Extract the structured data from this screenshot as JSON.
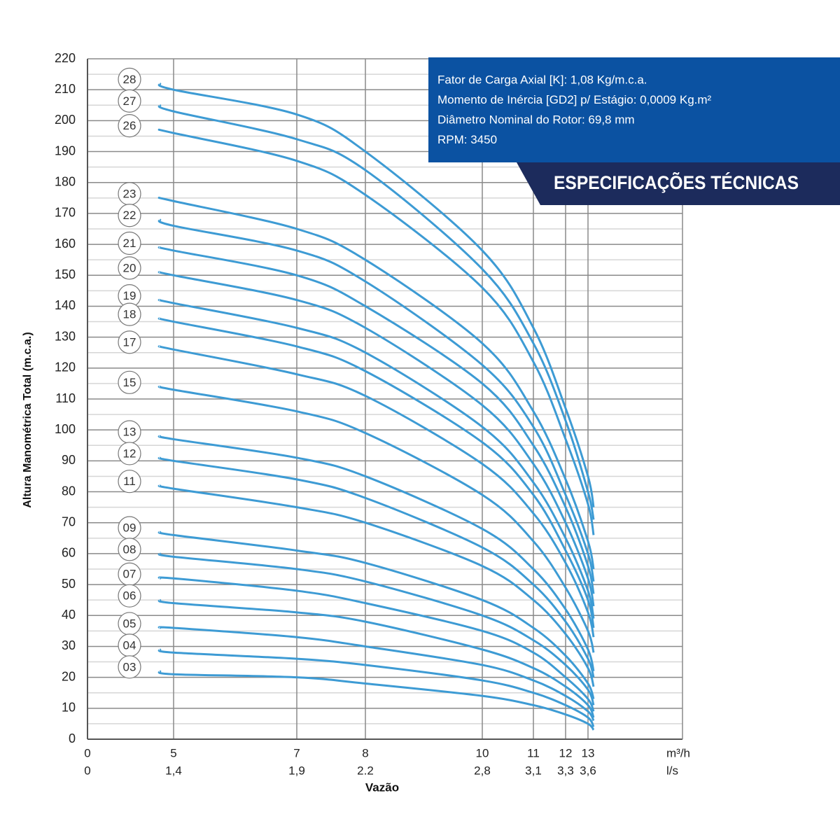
{
  "chart_data": {
    "type": "line",
    "ylabel": "Altura Manométrica Total (m.c.a.)",
    "xlabel": "Vazão",
    "x_unit": "m³/h",
    "x2_unit": "l/s",
    "annotations": [
      "Fator de Carga Axial [K]: 1,08 Kg/m.c.a.",
      "Momento de Inércia [GD2] p/ Estágio: 0,0009 Kg.m²",
      "Diâmetro Nominal do Rotor: 69,8 mm",
      "RPM: 3450"
    ],
    "banner": "ESPECIFICAÇÕES TÉCNICAS",
    "color": "#3d9bd4",
    "grid": true,
    "ylim": [
      0,
      220
    ],
    "yticks": [
      0,
      10,
      20,
      30,
      40,
      50,
      60,
      70,
      80,
      90,
      100,
      110,
      120,
      130,
      140,
      150,
      160,
      170,
      180,
      190,
      200,
      210,
      220
    ],
    "xticks": [
      0,
      5,
      7,
      8,
      10,
      11,
      12,
      13
    ],
    "x2ticks": [
      {
        "value": 0,
        "label": "0"
      },
      {
        "value": 1.4,
        "label": "1,4"
      },
      {
        "value": 1.9,
        "label": "1,9"
      },
      {
        "value": 2.2,
        "label": "2.2"
      },
      {
        "value": 2.8,
        "label": "2,8"
      },
      {
        "value": 3.1,
        "label": "3,1"
      },
      {
        "value": 3.3,
        "label": "3,3"
      },
      {
        "value": 3.6,
        "label": "3,6"
      }
    ],
    "x": [
      4.2,
      5,
      7,
      8,
      10,
      11,
      12,
      13,
      13.25
    ],
    "series": [
      {
        "name": "28",
        "values": [
          212,
          210,
          202,
          190,
          158,
          133,
          107,
          85,
          75
        ]
      },
      {
        "name": "27",
        "values": [
          205,
          203,
          194,
          184,
          152,
          128,
          103,
          80,
          71
        ]
      },
      {
        "name": "26",
        "values": [
          197,
          196,
          187,
          176,
          146,
          122,
          97,
          76,
          66
        ]
      },
      {
        "name": "23",
        "values": [
          175,
          174,
          165,
          155,
          128,
          106,
          84,
          64,
          55
        ]
      },
      {
        "name": "22",
        "values": [
          168,
          166,
          158,
          148,
          121,
          101,
          79,
          60,
          51
        ]
      },
      {
        "name": "21",
        "values": [
          159,
          158,
          150,
          140,
          115,
          95,
          75,
          56,
          47
        ]
      },
      {
        "name": "20",
        "values": [
          151,
          150,
          142,
          133,
          108,
          89,
          70,
          52,
          43
        ]
      },
      {
        "name": "19",
        "values": [
          142,
          141,
          133,
          125,
          101,
          83,
          65,
          48,
          39
        ]
      },
      {
        "name": "18",
        "values": [
          136,
          135,
          127,
          119,
          96,
          79,
          61,
          45,
          36
        ]
      },
      {
        "name": "17",
        "values": [
          127,
          126,
          118,
          111,
          89,
          73,
          57,
          41,
          33
        ]
      },
      {
        "name": "15",
        "values": [
          114,
          113,
          106,
          99,
          79,
          64,
          49,
          35,
          28
        ]
      },
      {
        "name": "13",
        "values": [
          98,
          97,
          91,
          85,
          68,
          55,
          42,
          29,
          22
        ]
      },
      {
        "name": "12",
        "values": [
          91,
          90,
          84,
          78,
          62,
          50,
          38,
          26,
          20
        ]
      },
      {
        "name": "11",
        "values": [
          82,
          81,
          75,
          70,
          56,
          45,
          34,
          23,
          17
        ]
      },
      {
        "name": "09",
        "values": [
          67,
          66,
          61,
          57,
          45,
          36,
          27,
          18,
          13
        ]
      },
      {
        "name": "08",
        "values": [
          60,
          59,
          55,
          51,
          40,
          32,
          24,
          16,
          11
        ]
      },
      {
        "name": "07",
        "values": [
          52,
          52,
          48,
          44,
          35,
          28,
          20,
          13,
          9
        ]
      },
      {
        "name": "06",
        "values": [
          45,
          44,
          41,
          38,
          29,
          23,
          17,
          11,
          7
        ]
      },
      {
        "name": "05",
        "values": [
          36,
          36,
          33,
          30,
          24,
          19,
          14,
          9,
          6
        ]
      },
      {
        "name": "04",
        "values": [
          29,
          28,
          26,
          24,
          19,
          15,
          11,
          7,
          4
        ]
      },
      {
        "name": "03",
        "values": [
          22,
          21,
          20,
          18,
          14,
          11,
          8,
          5,
          3
        ]
      }
    ]
  }
}
